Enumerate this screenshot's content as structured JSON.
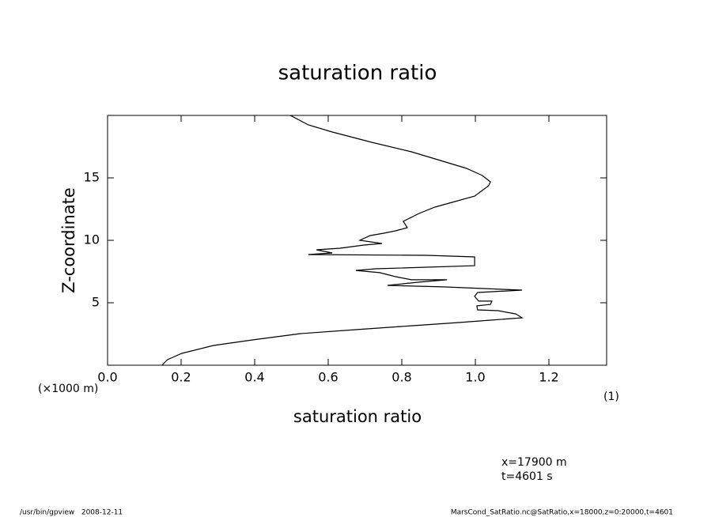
{
  "chart_data": {
    "type": "line",
    "title": "saturation ratio",
    "x_label": "saturation ratio",
    "y_label": "Z-coordinate",
    "y_unit": "(×1000 m)",
    "x_unit": "(1)",
    "annotations": [
      "x=17900 m",
      "t=4601 s"
    ],
    "footer_left": "/usr/bin/gpview   2008-12-11",
    "footer_right": "MarsCond_SatRatio.nc@SatRatio,x=18000,z=0:20000,t=4601",
    "xlim": [
      0,
      1.357
    ],
    "ylim": [
      0,
      20
    ],
    "xticks": [
      {
        "value": 0,
        "label": "0.0"
      },
      0.2,
      0.4,
      0.6,
      0.8,
      {
        "value": 1,
        "label": "1.0"
      },
      1.2
    ],
    "yticks": [
      5,
      10,
      15
    ],
    "series": [
      {
        "color": "#000000",
        "x": [
          0.148,
          0.163,
          0.202,
          0.288,
          0.396,
          0.525,
          0.675,
          0.826,
          0.955,
          1.041,
          1.127,
          1.11,
          1.062,
          1.006,
          1.004,
          1.041,
          1.045,
          1.009,
          0.998,
          1.006,
          1.127,
          0.912,
          0.761,
          0.847,
          0.923,
          0.826,
          0.783,
          0.74,
          0.675,
          0.729,
          0.998,
          0.998,
          0.869,
          0.546,
          0.611,
          0.568,
          0.632,
          0.697,
          0.746,
          0.686,
          0.714,
          0.751,
          0.783,
          0.815,
          0.804,
          0.847,
          0.89,
          0.944,
          0.998,
          1.036,
          1.041,
          1.019,
          0.976,
          0.912,
          0.826,
          0.718,
          0.611,
          0.546,
          0.497
        ],
        "values": [
          0,
          0.44,
          0.95,
          1.58,
          2.03,
          2.53,
          2.85,
          3.16,
          3.42,
          3.61,
          3.8,
          4.11,
          4.37,
          4.43,
          4.75,
          4.87,
          5.13,
          5.13,
          5.51,
          5.82,
          6.01,
          6.27,
          6.39,
          6.65,
          6.84,
          6.84,
          7.09,
          7.41,
          7.59,
          7.72,
          7.97,
          8.67,
          8.8,
          8.86,
          8.99,
          9.24,
          9.37,
          9.62,
          9.75,
          10.0,
          10.38,
          10.57,
          10.76,
          11.01,
          11.52,
          12.15,
          12.66,
          13.1,
          13.54,
          14.37,
          14.68,
          15.19,
          15.76,
          16.33,
          17.09,
          17.85,
          18.67,
          19.24,
          20
        ]
      }
    ]
  }
}
